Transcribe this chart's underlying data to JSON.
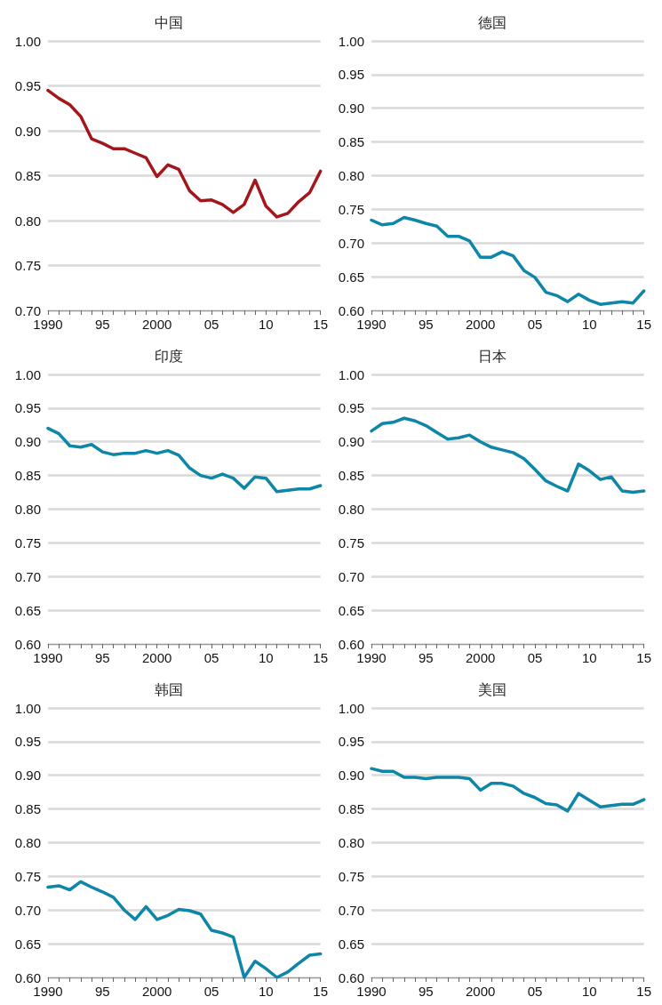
{
  "chart_data": [
    {
      "type": "line",
      "title": "中国",
      "x": [
        1990,
        1991,
        1992,
        1993,
        1994,
        1995,
        1996,
        1997,
        1998,
        1999,
        2000,
        2001,
        2002,
        2003,
        2004,
        2005,
        2006,
        2007,
        2008,
        2009,
        2010,
        2011,
        2012,
        2013,
        2014,
        2015
      ],
      "series": [
        {
          "color": "#a3171c",
          "values": [
            0.945,
            0.936,
            0.929,
            0.916,
            0.891,
            0.886,
            0.88,
            0.88,
            0.875,
            0.87,
            0.849,
            0.862,
            0.857,
            0.833,
            0.822,
            0.823,
            0.818,
            0.809,
            0.818,
            0.845,
            0.816,
            0.804,
            0.808,
            0.821,
            0.831,
            0.855
          ]
        }
      ],
      "xlim": [
        1990,
        2015
      ],
      "xticks": [
        {
          "value": 1990,
          "label": "1990"
        },
        {
          "value": 1991,
          "label": null
        },
        {
          "value": 1992,
          "label": null
        },
        {
          "value": 1993,
          "label": null
        },
        {
          "value": 1994,
          "label": null
        },
        {
          "value": 1995,
          "label": "95"
        },
        {
          "value": 1996,
          "label": null
        },
        {
          "value": 1997,
          "label": null
        },
        {
          "value": 1998,
          "label": null
        },
        {
          "value": 1999,
          "label": null
        },
        {
          "value": 2000,
          "label": "2000"
        },
        {
          "value": 2001,
          "label": null
        },
        {
          "value": 2002,
          "label": null
        },
        {
          "value": 2003,
          "label": null
        },
        {
          "value": 2004,
          "label": null
        },
        {
          "value": 2005,
          "label": "05"
        },
        {
          "value": 2006,
          "label": null
        },
        {
          "value": 2007,
          "label": null
        },
        {
          "value": 2008,
          "label": null
        },
        {
          "value": 2009,
          "label": null
        },
        {
          "value": 2010,
          "label": "10"
        },
        {
          "value": 2011,
          "label": null
        },
        {
          "value": 2012,
          "label": null
        },
        {
          "value": 2013,
          "label": null
        },
        {
          "value": 2014,
          "label": null
        },
        {
          "value": 2015,
          "label": "15"
        }
      ],
      "ylim": [
        0.7,
        1.0
      ],
      "yticks": [
        {
          "value": 0.7,
          "label": "0.70"
        },
        {
          "value": 0.75,
          "label": "0.75"
        },
        {
          "value": 0.8,
          "label": "0.80"
        },
        {
          "value": 0.85,
          "label": "0.85"
        },
        {
          "value": 0.9,
          "label": "0.90"
        },
        {
          "value": 0.95,
          "label": "0.95"
        },
        {
          "value": 1.0,
          "label": "1.00"
        }
      ],
      "grid": "y"
    },
    {
      "type": "line",
      "title": "德国",
      "x": [
        1990,
        1991,
        1992,
        1993,
        1994,
        1995,
        1996,
        1997,
        1998,
        1999,
        2000,
        2001,
        2002,
        2003,
        2004,
        2005,
        2006,
        2007,
        2008,
        2009,
        2010,
        2011,
        2012,
        2013,
        2014,
        2015
      ],
      "series": [
        {
          "color": "#0e86a8",
          "values": [
            0.734,
            0.727,
            0.729,
            0.738,
            0.734,
            0.729,
            0.725,
            0.71,
            0.71,
            0.703,
            0.679,
            0.679,
            0.687,
            0.681,
            0.659,
            0.649,
            0.627,
            0.622,
            0.613,
            0.624,
            0.615,
            0.609,
            0.611,
            0.613,
            0.611,
            0.629
          ]
        }
      ],
      "xlim": [
        1990,
        2015
      ],
      "xticks": [
        {
          "value": 1990,
          "label": "1990"
        },
        {
          "value": 1991,
          "label": null
        },
        {
          "value": 1992,
          "label": null
        },
        {
          "value": 1993,
          "label": null
        },
        {
          "value": 1994,
          "label": null
        },
        {
          "value": 1995,
          "label": "95"
        },
        {
          "value": 1996,
          "label": null
        },
        {
          "value": 1997,
          "label": null
        },
        {
          "value": 1998,
          "label": null
        },
        {
          "value": 1999,
          "label": null
        },
        {
          "value": 2000,
          "label": "2000"
        },
        {
          "value": 2001,
          "label": null
        },
        {
          "value": 2002,
          "label": null
        },
        {
          "value": 2003,
          "label": null
        },
        {
          "value": 2004,
          "label": null
        },
        {
          "value": 2005,
          "label": "05"
        },
        {
          "value": 2006,
          "label": null
        },
        {
          "value": 2007,
          "label": null
        },
        {
          "value": 2008,
          "label": null
        },
        {
          "value": 2009,
          "label": null
        },
        {
          "value": 2010,
          "label": "10"
        },
        {
          "value": 2011,
          "label": null
        },
        {
          "value": 2012,
          "label": null
        },
        {
          "value": 2013,
          "label": null
        },
        {
          "value": 2014,
          "label": null
        },
        {
          "value": 2015,
          "label": "15"
        }
      ],
      "ylim": [
        0.6,
        1.0
      ],
      "yticks": [
        {
          "value": 0.6,
          "label": "0.60"
        },
        {
          "value": 0.65,
          "label": "0.65"
        },
        {
          "value": 0.7,
          "label": "0.70"
        },
        {
          "value": 0.75,
          "label": "0.75"
        },
        {
          "value": 0.8,
          "label": "0.80"
        },
        {
          "value": 0.85,
          "label": "0.85"
        },
        {
          "value": 0.9,
          "label": "0.90"
        },
        {
          "value": 0.95,
          "label": "0.95"
        },
        {
          "value": 1.0,
          "label": "1.00"
        }
      ],
      "grid": "y"
    },
    {
      "type": "line",
      "title": "印度",
      "x": [
        1990,
        1991,
        1992,
        1993,
        1994,
        1995,
        1996,
        1997,
        1998,
        1999,
        2000,
        2001,
        2002,
        2003,
        2004,
        2005,
        2006,
        2007,
        2008,
        2009,
        2010,
        2011,
        2012,
        2013,
        2014,
        2015
      ],
      "series": [
        {
          "color": "#0e86a8",
          "values": [
            0.92,
            0.912,
            0.894,
            0.892,
            0.896,
            0.885,
            0.881,
            0.883,
            0.883,
            0.887,
            0.883,
            0.887,
            0.88,
            0.861,
            0.85,
            0.846,
            0.852,
            0.846,
            0.831,
            0.848,
            0.846,
            0.826,
            0.828,
            0.83,
            0.83,
            0.835
          ]
        }
      ],
      "xlim": [
        1990,
        2015
      ],
      "xticks": [
        {
          "value": 1990,
          "label": "1990"
        },
        {
          "value": 1991,
          "label": null
        },
        {
          "value": 1992,
          "label": null
        },
        {
          "value": 1993,
          "label": null
        },
        {
          "value": 1994,
          "label": null
        },
        {
          "value": 1995,
          "label": "95"
        },
        {
          "value": 1996,
          "label": null
        },
        {
          "value": 1997,
          "label": null
        },
        {
          "value": 1998,
          "label": null
        },
        {
          "value": 1999,
          "label": null
        },
        {
          "value": 2000,
          "label": "2000"
        },
        {
          "value": 2001,
          "label": null
        },
        {
          "value": 2002,
          "label": null
        },
        {
          "value": 2003,
          "label": null
        },
        {
          "value": 2004,
          "label": null
        },
        {
          "value": 2005,
          "label": "05"
        },
        {
          "value": 2006,
          "label": null
        },
        {
          "value": 2007,
          "label": null
        },
        {
          "value": 2008,
          "label": null
        },
        {
          "value": 2009,
          "label": null
        },
        {
          "value": 2010,
          "label": "10"
        },
        {
          "value": 2011,
          "label": null
        },
        {
          "value": 2012,
          "label": null
        },
        {
          "value": 2013,
          "label": null
        },
        {
          "value": 2014,
          "label": null
        },
        {
          "value": 2015,
          "label": "15"
        }
      ],
      "ylim": [
        0.6,
        1.0
      ],
      "yticks": [
        {
          "value": 0.6,
          "label": "0.60"
        },
        {
          "value": 0.65,
          "label": "0.65"
        },
        {
          "value": 0.7,
          "label": "0.70"
        },
        {
          "value": 0.75,
          "label": "0.75"
        },
        {
          "value": 0.8,
          "label": "0.80"
        },
        {
          "value": 0.85,
          "label": "0.85"
        },
        {
          "value": 0.9,
          "label": "0.90"
        },
        {
          "value": 0.95,
          "label": "0.95"
        },
        {
          "value": 1.0,
          "label": "1.00"
        }
      ],
      "grid": "y"
    },
    {
      "type": "line",
      "title": "日本",
      "x": [
        1990,
        1991,
        1992,
        1993,
        1994,
        1995,
        1996,
        1997,
        1998,
        1999,
        2000,
        2001,
        2002,
        2003,
        2004,
        2005,
        2006,
        2007,
        2008,
        2009,
        2010,
        2011,
        2012,
        2013,
        2014,
        2015
      ],
      "series": [
        {
          "color": "#0e86a8",
          "values": [
            0.916,
            0.927,
            0.929,
            0.935,
            0.931,
            0.924,
            0.914,
            0.904,
            0.906,
            0.91,
            0.9,
            0.892,
            0.888,
            0.884,
            0.875,
            0.859,
            0.842,
            0.834,
            0.827,
            0.867,
            0.857,
            0.844,
            0.848,
            0.827,
            0.825,
            0.827
          ]
        }
      ],
      "xlim": [
        1990,
        2015
      ],
      "xticks": [
        {
          "value": 1990,
          "label": "1990"
        },
        {
          "value": 1991,
          "label": null
        },
        {
          "value": 1992,
          "label": null
        },
        {
          "value": 1993,
          "label": null
        },
        {
          "value": 1994,
          "label": null
        },
        {
          "value": 1995,
          "label": "95"
        },
        {
          "value": 1996,
          "label": null
        },
        {
          "value": 1997,
          "label": null
        },
        {
          "value": 1998,
          "label": null
        },
        {
          "value": 1999,
          "label": null
        },
        {
          "value": 2000,
          "label": "2000"
        },
        {
          "value": 2001,
          "label": null
        },
        {
          "value": 2002,
          "label": null
        },
        {
          "value": 2003,
          "label": null
        },
        {
          "value": 2004,
          "label": null
        },
        {
          "value": 2005,
          "label": "05"
        },
        {
          "value": 2006,
          "label": null
        },
        {
          "value": 2007,
          "label": null
        },
        {
          "value": 2008,
          "label": null
        },
        {
          "value": 2009,
          "label": null
        },
        {
          "value": 2010,
          "label": "10"
        },
        {
          "value": 2011,
          "label": null
        },
        {
          "value": 2012,
          "label": null
        },
        {
          "value": 2013,
          "label": null
        },
        {
          "value": 2014,
          "label": null
        },
        {
          "value": 2015,
          "label": "15"
        }
      ],
      "ylim": [
        0.6,
        1.0
      ],
      "yticks": [
        {
          "value": 0.6,
          "label": "0.60"
        },
        {
          "value": 0.65,
          "label": "0.65"
        },
        {
          "value": 0.7,
          "label": "0.70"
        },
        {
          "value": 0.75,
          "label": "0.75"
        },
        {
          "value": 0.8,
          "label": "0.80"
        },
        {
          "value": 0.85,
          "label": "0.85"
        },
        {
          "value": 0.9,
          "label": "0.90"
        },
        {
          "value": 0.95,
          "label": "0.95"
        },
        {
          "value": 1.0,
          "label": "1.00"
        }
      ],
      "grid": "y"
    },
    {
      "type": "line",
      "title": "韩国",
      "x": [
        1990,
        1991,
        1992,
        1993,
        1994,
        1995,
        1996,
        1997,
        1998,
        1999,
        2000,
        2001,
        2002,
        2003,
        2004,
        2005,
        2006,
        2007,
        2008,
        2009,
        2010,
        2011,
        2012,
        2013,
        2014,
        2015
      ],
      "series": [
        {
          "color": "#0e86a8",
          "values": [
            0.734,
            0.736,
            0.73,
            0.742,
            0.734,
            0.727,
            0.719,
            0.7,
            0.686,
            0.705,
            0.686,
            0.692,
            0.701,
            0.699,
            0.694,
            0.67,
            0.666,
            0.66,
            0.6,
            0.624,
            0.613,
            0.6,
            0.608,
            0.621,
            0.633,
            0.635
          ]
        }
      ],
      "xlim": [
        1990,
        2015
      ],
      "xticks": [
        {
          "value": 1990,
          "label": "1990"
        },
        {
          "value": 1991,
          "label": null
        },
        {
          "value": 1992,
          "label": null
        },
        {
          "value": 1993,
          "label": null
        },
        {
          "value": 1994,
          "label": null
        },
        {
          "value": 1995,
          "label": "95"
        },
        {
          "value": 1996,
          "label": null
        },
        {
          "value": 1997,
          "label": null
        },
        {
          "value": 1998,
          "label": null
        },
        {
          "value": 1999,
          "label": null
        },
        {
          "value": 2000,
          "label": "2000"
        },
        {
          "value": 2001,
          "label": null
        },
        {
          "value": 2002,
          "label": null
        },
        {
          "value": 2003,
          "label": null
        },
        {
          "value": 2004,
          "label": null
        },
        {
          "value": 2005,
          "label": "05"
        },
        {
          "value": 2006,
          "label": null
        },
        {
          "value": 2007,
          "label": null
        },
        {
          "value": 2008,
          "label": null
        },
        {
          "value": 2009,
          "label": null
        },
        {
          "value": 2010,
          "label": "10"
        },
        {
          "value": 2011,
          "label": null
        },
        {
          "value": 2012,
          "label": null
        },
        {
          "value": 2013,
          "label": null
        },
        {
          "value": 2014,
          "label": null
        },
        {
          "value": 2015,
          "label": "15"
        }
      ],
      "ylim": [
        0.6,
        1.0
      ],
      "yticks": [
        {
          "value": 0.6,
          "label": "0.60"
        },
        {
          "value": 0.65,
          "label": "0.65"
        },
        {
          "value": 0.7,
          "label": "0.70"
        },
        {
          "value": 0.75,
          "label": "0.75"
        },
        {
          "value": 0.8,
          "label": "0.80"
        },
        {
          "value": 0.85,
          "label": "0.85"
        },
        {
          "value": 0.9,
          "label": "0.90"
        },
        {
          "value": 0.95,
          "label": "0.95"
        },
        {
          "value": 1.0,
          "label": "1.00"
        }
      ],
      "grid": "y"
    },
    {
      "type": "line",
      "title": "美国",
      "x": [
        1990,
        1991,
        1992,
        1993,
        1994,
        1995,
        1996,
        1997,
        1998,
        1999,
        2000,
        2001,
        2002,
        2003,
        2004,
        2005,
        2006,
        2007,
        2008,
        2009,
        2010,
        2011,
        2012,
        2013,
        2014,
        2015
      ],
      "series": [
        {
          "color": "#0e86a8",
          "values": [
            0.91,
            0.906,
            0.906,
            0.897,
            0.897,
            0.895,
            0.897,
            0.897,
            0.897,
            0.895,
            0.878,
            0.888,
            0.888,
            0.884,
            0.873,
            0.867,
            0.858,
            0.856,
            0.847,
            0.873,
            0.863,
            0.853,
            0.855,
            0.857,
            0.857,
            0.864
          ]
        }
      ],
      "xlim": [
        1990,
        2015
      ],
      "xticks": [
        {
          "value": 1990,
          "label": "1990"
        },
        {
          "value": 1991,
          "label": null
        },
        {
          "value": 1992,
          "label": null
        },
        {
          "value": 1993,
          "label": null
        },
        {
          "value": 1994,
          "label": null
        },
        {
          "value": 1995,
          "label": "95"
        },
        {
          "value": 1996,
          "label": null
        },
        {
          "value": 1997,
          "label": null
        },
        {
          "value": 1998,
          "label": null
        },
        {
          "value": 1999,
          "label": null
        },
        {
          "value": 2000,
          "label": "2000"
        },
        {
          "value": 2001,
          "label": null
        },
        {
          "value": 2002,
          "label": null
        },
        {
          "value": 2003,
          "label": null
        },
        {
          "value": 2004,
          "label": null
        },
        {
          "value": 2005,
          "label": "05"
        },
        {
          "value": 2006,
          "label": null
        },
        {
          "value": 2007,
          "label": null
        },
        {
          "value": 2008,
          "label": null
        },
        {
          "value": 2009,
          "label": null
        },
        {
          "value": 2010,
          "label": "10"
        },
        {
          "value": 2011,
          "label": null
        },
        {
          "value": 2012,
          "label": null
        },
        {
          "value": 2013,
          "label": null
        },
        {
          "value": 2014,
          "label": null
        },
        {
          "value": 2015,
          "label": "15"
        }
      ],
      "ylim": [
        0.6,
        1.0
      ],
      "yticks": [
        {
          "value": 0.6,
          "label": "0.60"
        },
        {
          "value": 0.65,
          "label": "0.65"
        },
        {
          "value": 0.7,
          "label": "0.70"
        },
        {
          "value": 0.75,
          "label": "0.75"
        },
        {
          "value": 0.8,
          "label": "0.80"
        },
        {
          "value": 0.85,
          "label": "0.85"
        },
        {
          "value": 0.9,
          "label": "0.90"
        },
        {
          "value": 0.95,
          "label": "0.95"
        },
        {
          "value": 1.0,
          "label": "1.00"
        }
      ],
      "grid": "y"
    }
  ]
}
